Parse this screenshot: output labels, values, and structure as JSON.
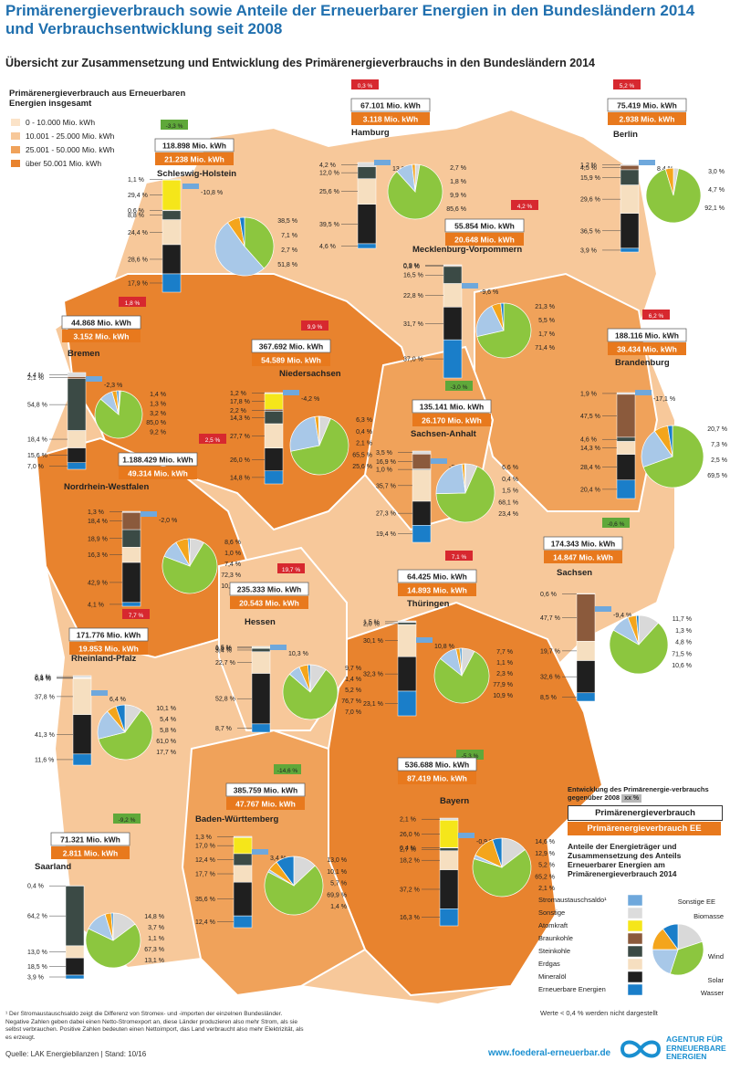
{
  "title": "Primärenergieverbrauch sowie Anteile der Erneuerbarer Energien in den Bundesländern 2014 und Verbrauchsentwicklung seit 2008",
  "subtitle": "Übersicht zur Zusammensetzung und Entwicklung des Primärenergieverbrauchs in den Bundesländern 2014",
  "legend": {
    "title": "Primärenergieverbrauch aus Erneuerbaren Energien insgesamt",
    "classes": [
      {
        "label": "0 - 10.000 Mio. kWh",
        "color": "#fbe3c8"
      },
      {
        "label": "10.001 - 25.000 Mio. kWh",
        "color": "#f7c89a"
      },
      {
        "label": "25.001 - 50.000 Mio. kWh",
        "color": "#f0a25a"
      },
      {
        "label": "über 50.001 Mio. kWh",
        "color": "#e8832e"
      }
    ]
  },
  "explanation": {
    "heading": "Entwicklung des Primärenergie-verbrauchs gegenüber 2008",
    "tag_sample": "xx %",
    "box_total": "Primärenergieverbrauch",
    "box_ee": "Primärenergieverbrauch EE",
    "shares_heading": "Anteile der Energieträger und Zusammensetzung des Anteils Erneuerbarer Energien am Primärenergieverbrauch 2014",
    "carriers": [
      "Stromaustauschsaldo¹",
      "Sonstige",
      "Atomkraft",
      "Braunkohle",
      "Steinkohle",
      "Erdgas",
      "Mineralöl",
      "Erneuerbare Energien"
    ],
    "ee_types": [
      "Sonstige EE",
      "Biomasse",
      "Wind",
      "Solar",
      "Wasser"
    ],
    "note": "Werte < 0,4 % werden nicht dargestellt"
  },
  "footnote": "¹ Der Stromaustauschsaldo zeigt die Differenz von Stromex- und -importen der einzelnen Bundesländer. Negative Zahlen geben dabei einen Netto-Stromexport an, diese Länder produzieren also mehr Strom, als sie selbst verbrauchen. Positive Zahlen bedeuten einen Nettoimport, das Land verbraucht also mehr Elektrizität, als es erzeugt.",
  "source": "Quelle: LAK Energiebilanzen | Stand: 10/16",
  "url": "www.foederal-erneuerbar.de",
  "logo_text": "AGENTUR FÜR ERNEUERBARE ENERGIEN",
  "colors": {
    "austausch": "#6fa8dc",
    "sonstige": "#dcdcdc",
    "atom": "#f5e61a",
    "braunkohle": "#8b5a3c",
    "steinkohle": "#3b4a45",
    "erdgas": "#f6dfc0",
    "mineraloel": "#1f1f1f",
    "ee": "#1a7ec9",
    "sonstige_ee": "#d9d9d9",
    "biomasse": "#8cc63f",
    "wind": "#a8c8e8",
    "solar": "#f4a51c",
    "wasser": "#1a7ec9",
    "tag_pos": "#5fa83a",
    "tag_neg": "#d7282f"
  },
  "chart_data": [
    {
      "type": "bar+pie",
      "state": "Schleswig-Holstein",
      "change": "-3,3 %",
      "total": "118.898 Mio. kWh",
      "ee": "21.238 Mio. kWh",
      "bar_labels": [
        "1,1 %",
        "29,4 %",
        "0,6 %",
        "8,8 %",
        "24,4 %",
        "28,6 %",
        "17,9 %"
      ],
      "bar": {
        "sonstige": 1.1,
        "atom": 29.4,
        "braunkohle": 0.6,
        "steinkohle": 8.8,
        "erdgas": 24.4,
        "mineraloel": 28.6,
        "ee": 17.9
      },
      "austausch_label": "-10,8 %",
      "pie_labels": [
        "38,5 %",
        "7,1 %",
        "2,7 %",
        "51,8 %"
      ],
      "pie": {
        "sonstige_ee": 0,
        "biomasse": 38.5,
        "wind": 51.8,
        "solar": 7.1,
        "wasser": 2.7
      }
    },
    {
      "type": "bar+pie",
      "state": "Hamburg",
      "change": "0,3 %",
      "total": "67.101 Mio. kWh",
      "ee": "3.118 Mio. kWh",
      "bar_labels": [
        "4,2 %",
        "12,0 %",
        "25,6 %",
        "39,5 %",
        "4,6 %"
      ],
      "bar": {
        "sonstige": 4.2,
        "steinkohle": 12.0,
        "erdgas": 25.6,
        "mineraloel": 39.5,
        "ee": 4.6
      },
      "austausch_label": "13,9 %",
      "pie_labels": [
        "2,7 %",
        "1,8 %",
        "9,9 %",
        "85,6 %"
      ],
      "pie": {
        "sonstige_ee": 2.7,
        "biomasse": 85.6,
        "wind": 9.9,
        "solar": 1.8,
        "wasser": 0
      }
    },
    {
      "type": "bar+pie",
      "state": "Berlin",
      "change": "5,2 %",
      "total": "75.419 Mio. kWh",
      "ee": "2.938 Mio. kWh",
      "bar_labels": [
        "1,2 %",
        "4,5 %",
        "15,9 %",
        "29,6 %",
        "36,5 %",
        "3,9 %"
      ],
      "bar": {
        "sonstige": 1.2,
        "braunkohle": 4.5,
        "steinkohle": 15.9,
        "erdgas": 29.6,
        "mineraloel": 36.5,
        "ee": 3.9
      },
      "austausch_label": "8,4 %",
      "pie_labels": [
        "3,0 %",
        "4,7 %",
        "92,1 %"
      ],
      "pie": {
        "sonstige_ee": 3.0,
        "biomasse": 92.1,
        "wind": 0,
        "solar": 4.7,
        "wasser": 0
      }
    },
    {
      "type": "bar+pie",
      "state": "Mecklenburg-Vorpommern",
      "change": "4,2 %",
      "total": "55.854 Mio. kWh",
      "ee": "20.648 Mio. kWh",
      "bar_labels": [
        "0,9 %",
        "0,8 %",
        "16,5 %",
        "22,8 %",
        "31,7 %",
        "37,0 %"
      ],
      "bar": {
        "sonstige": 0.9,
        "braunkohle": 0.8,
        "steinkohle": 16.5,
        "erdgas": 22.8,
        "mineraloel": 31.7,
        "ee": 37.0
      },
      "austausch_label": "-9,6 %",
      "pie_labels": [
        "21,3 %",
        "5,5 %",
        "1,7 %",
        "71,4 %"
      ],
      "pie": {
        "sonstige_ee": 0,
        "biomasse": 71.4,
        "wind": 21.3,
        "solar": 5.5,
        "wasser": 1.7
      }
    },
    {
      "type": "bar+pie",
      "state": "Bremen",
      "change": "1,8 %",
      "total": "44.868 Mio. kWh",
      "ee": "3.152 Mio. kWh",
      "bar_labels": [
        "4,4 %",
        "2,1 %",
        "54,8 %",
        "18,4 %",
        "15,6 %",
        "7,0 %"
      ],
      "bar": {
        "sonstige": 4.4,
        "braunkohle": 2.1,
        "steinkohle": 54.8,
        "erdgas": 18.4,
        "mineraloel": 15.6,
        "ee": 7.0
      },
      "austausch_label": "-2,3 %",
      "pie_labels": [
        "1,4 %",
        "1,3 %",
        "3,2 %",
        "85,0 %",
        "9,2 %"
      ],
      "pie": {
        "sonstige_ee": 1.4,
        "biomasse": 85.0,
        "wind": 9.2,
        "solar": 3.2,
        "wasser": 1.3
      }
    },
    {
      "type": "bar+pie",
      "state": "Niedersachsen",
      "change": "9,9 %",
      "total": "367.692 Mio. kWh",
      "ee": "54.589 Mio. kWh",
      "bar_labels": [
        "1,2 %",
        "17,8 %",
        "2,2 %",
        "14,3 %",
        "27,7 %",
        "26,0 %",
        "14,8 %"
      ],
      "bar": {
        "sonstige": 1.2,
        "atom": 17.8,
        "braunkohle": 2.2,
        "steinkohle": 14.3,
        "erdgas": 27.7,
        "mineraloel": 26.0,
        "ee": 14.8
      },
      "austausch_label": "-4,2 %",
      "pie_labels": [
        "6,3 %",
        "0,4 %",
        "2,1 %",
        "65,5 %",
        "25,6 %"
      ],
      "pie": {
        "sonstige_ee": 6.3,
        "biomasse": 65.5,
        "wind": 25.6,
        "solar": 2.1,
        "wasser": 0.4
      }
    },
    {
      "type": "bar+pie",
      "state": "Brandenburg",
      "change": "6,2 %",
      "total": "188.116 Mio. kWh",
      "ee": "38.434 Mio. kWh",
      "bar_labels": [
        "1,9 %",
        "47,5 %",
        "4,6 %",
        "14,3 %",
        "28,4 %",
        "20,4 %"
      ],
      "bar": {
        "sonstige": 1.9,
        "braunkohle": 47.5,
        "steinkohle": 4.6,
        "erdgas": 14.3,
        "mineraloel": 28.4,
        "ee": 20.4
      },
      "austausch_label": "-17,1 %",
      "pie_labels": [
        "20,7 %",
        "7,3 %",
        "2,5 %",
        "69,5 %"
      ],
      "pie": {
        "sonstige_ee": 0,
        "biomasse": 69.5,
        "wind": 20.7,
        "solar": 7.3,
        "wasser": 2.5
      }
    },
    {
      "type": "bar+pie",
      "state": "Sachsen-Anhalt",
      "change": "-3,0 %",
      "total": "135.141 Mio. kWh",
      "ee": "26.170 Mio. kWh",
      "bar_labels": [
        "3,5 %",
        "16,9 %",
        "1,0 %",
        "35,7 %",
        "27,3 %",
        "19,4 %"
      ],
      "bar": {
        "sonstige": 3.5,
        "braunkohle": 16.9,
        "steinkohle": 1.0,
        "erdgas": 35.7,
        "mineraloel": 27.3,
        "ee": 19.4
      },
      "austausch_label": "-3,8 %",
      "pie_labels": [
        "6,6 %",
        "0,4 %",
        "1,5 %",
        "68,1 %",
        "23,4 %"
      ],
      "pie": {
        "sonstige_ee": 6.6,
        "biomasse": 68.1,
        "wind": 23.4,
        "solar": 1.5,
        "wasser": 0.4
      }
    },
    {
      "type": "bar+pie",
      "state": "Nordrhein-Westfalen",
      "change": "2,5 %",
      "total": "1.188.429 Mio. kWh",
      "ee": "49.314 Mio. kWh",
      "bar_labels": [
        "1,3 %",
        "18,4 %",
        "18,9 %",
        "16,3 %",
        "42,9 %",
        "4,1 %"
      ],
      "bar": {
        "sonstige": 1.3,
        "braunkohle": 18.4,
        "steinkohle": 18.9,
        "erdgas": 16.3,
        "mineraloel": 42.9,
        "ee": 4.1
      },
      "austausch_label": "-2,0 %",
      "pie_labels": [
        "8,6 %",
        "1,0 %",
        "7,4 %",
        "72,3 %",
        "10,8 %"
      ],
      "pie": {
        "sonstige_ee": 8.6,
        "biomasse": 72.3,
        "wind": 10.8,
        "solar": 7.4,
        "wasser": 1.0
      }
    },
    {
      "type": "bar+pie",
      "state": "Sachsen",
      "change": "-0,6 %",
      "total": "174.343 Mio. kWh",
      "ee": "14.847 Mio. kWh",
      "bar_labels": [
        "0,6 %",
        "47,7 %",
        "19,7 %",
        "32,6 %",
        "8,5 %"
      ],
      "bar": {
        "sonstige": 0.6,
        "braunkohle": 47.7,
        "erdgas": 19.7,
        "mineraloel": 32.6,
        "ee": 8.5
      },
      "austausch_label": "-9,4 %",
      "pie_labels": [
        "11,7 %",
        "1,3 %",
        "4,8 %",
        "71,5 %",
        "10,6 %"
      ],
      "pie": {
        "sonstige_ee": 11.7,
        "biomasse": 71.5,
        "wind": 10.6,
        "solar": 4.8,
        "wasser": 1.3
      }
    },
    {
      "type": "bar+pie",
      "state": "Thüringen",
      "change": "7,1 %",
      "total": "64.425 Mio. kWh",
      "ee": "14.893 Mio. kWh",
      "bar_labels": [
        "1,5 %",
        "2,0 %",
        "30,1 %",
        "32,3 %",
        "23,1 %"
      ],
      "bar": {
        "sonstige": 1.5,
        "steinkohle": 2.0,
        "erdgas": 30.1,
        "mineraloel": 32.3,
        "ee": 23.1
      },
      "austausch_label": "10,8 %",
      "pie_labels": [
        "7,7 %",
        "1,1 %",
        "2,3 %",
        "77,9 %",
        "10,9 %"
      ],
      "pie": {
        "sonstige_ee": 7.7,
        "biomasse": 77.9,
        "wind": 10.9,
        "solar": 2.3,
        "wasser": 1.1
      }
    },
    {
      "type": "bar+pie",
      "state": "Hessen",
      "change": "19,7 %",
      "total": "235.333 Mio. kWh",
      "ee": "20.543 Mio. kWh",
      "bar_labels": [
        "1,5 %",
        "0,6 %",
        "3,4 %",
        "22,7 %",
        "52,8 %",
        "8,7 %"
      ],
      "bar": {
        "sonstige": 1.5,
        "atom": 0.6,
        "braunkohle": 0.0,
        "steinkohle": 3.4,
        "erdgas": 22.7,
        "mineraloel": 52.8,
        "ee": 8.7
      },
      "austausch_label": "10,3 %",
      "pie_labels": [
        "9,7 %",
        "1,4 %",
        "5,2 %",
        "76,7 %",
        "7,0 %"
      ],
      "pie": {
        "sonstige_ee": 9.7,
        "biomasse": 76.7,
        "wind": 7.0,
        "solar": 5.2,
        "wasser": 1.4
      }
    },
    {
      "type": "bar+pie",
      "state": "Rheinland-Pfalz",
      "change": "7,7 %",
      "total": "171.776 Mio. kWh",
      "ee": "19.853 Mio. kWh",
      "bar_labels": [
        "2,1 %",
        "0,5 %",
        "0,4 %",
        "37,8 %",
        "41,3 %",
        "11,6 %"
      ],
      "bar": {
        "sonstige": 2.1,
        "braunkohle": 0.5,
        "steinkohle": 0.4,
        "erdgas": 37.8,
        "mineraloel": 41.3,
        "ee": 11.6
      },
      "austausch_label": "6,4 %",
      "pie_labels": [
        "10,1 %",
        "5,4 %",
        "5,8 %",
        "61,0 %",
        "17,7 %"
      ],
      "pie": {
        "sonstige_ee": 10.1,
        "biomasse": 61.0,
        "wind": 17.7,
        "solar": 5.8,
        "wasser": 5.4
      }
    },
    {
      "type": "bar+pie",
      "state": "Saarland",
      "change": "-9,2 %",
      "total": "71.321 Mio. kWh",
      "ee": "2.811 Mio. kWh",
      "bar_labels": [
        "0,4 %",
        "64,2 %",
        "13,0 %",
        "18,5 %",
        "3,9 %"
      ],
      "bar": {
        "sonstige": 0.4,
        "steinkohle": 64.2,
        "erdgas": 13.0,
        "mineraloel": 18.5,
        "ee": 3.9
      },
      "austausch_label": "",
      "pie_labels": [
        "14,8 %",
        "3,7 %",
        "1,1 %",
        "67,3 %",
        "13,1 %"
      ],
      "pie": {
        "sonstige_ee": 14.8,
        "biomasse": 67.3,
        "wind": 13.1,
        "solar": 3.7,
        "wasser": 1.1
      }
    },
    {
      "type": "bar+pie",
      "state": "Baden-Württemberg",
      "change": "-14,6 %",
      "total": "385.759 Mio. kWh",
      "ee": "47.767 Mio. kWh",
      "bar_labels": [
        "1,3 %",
        "17,0 %",
        "12,4 %",
        "17,7 %",
        "35,6 %",
        "12,4 %"
      ],
      "bar": {
        "sonstige": 1.3,
        "atom": 17.0,
        "steinkohle": 12.4,
        "erdgas": 17.7,
        "mineraloel": 35.6,
        "ee": 12.4
      },
      "austausch_label": "3,4 %",
      "pie_labels": [
        "13,0 %",
        "10,1 %",
        "5,7 %",
        "69,9 %",
        "1,4 %"
      ],
      "pie": {
        "sonstige_ee": 13.0,
        "biomasse": 69.9,
        "wind": 1.4,
        "solar": 5.7,
        "wasser": 10.1
      }
    },
    {
      "type": "bar+pie",
      "state": "Bayern",
      "change": "-5,3 %",
      "total": "536.688 Mio. kWh",
      "ee": "87.419 Mio. kWh",
      "bar_labels": [
        "2,1 %",
        "26,0 %",
        "0,4 %",
        "2,7 %",
        "18,2 %",
        "37,2 %",
        "16,3 %"
      ],
      "bar": {
        "sonstige": 2.1,
        "atom": 26.0,
        "braunkohle": 0.4,
        "steinkohle": 2.7,
        "erdgas": 18.2,
        "mineraloel": 37.2,
        "ee": 16.3
      },
      "austausch_label": "-0,9 %",
      "pie_labels": [
        "14,6 %",
        "12,9 %",
        "5,2 %",
        "65,2 %",
        "2,1 %"
      ],
      "pie": {
        "sonstige_ee": 14.6,
        "biomasse": 65.2,
        "wind": 2.1,
        "solar": 12.9,
        "wasser": 5.2
      }
    }
  ]
}
